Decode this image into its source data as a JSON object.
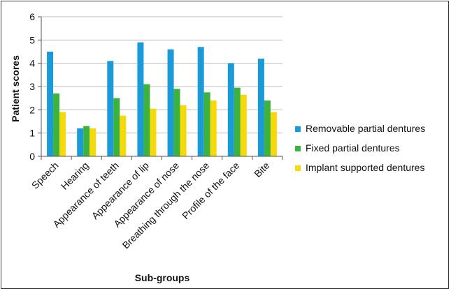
{
  "chart_data": {
    "type": "bar",
    "title": "",
    "xlabel": "Sub-groups",
    "ylabel": "Patient scores",
    "ylim": [
      0,
      6
    ],
    "yticks": [
      "0",
      "1",
      "2",
      "3",
      "4",
      "5",
      "6"
    ],
    "grid": true,
    "legend_position": "right",
    "categories": [
      "Speech",
      "Hearing",
      "Appearance of teeth",
      "Appearance of lip",
      "Appearance of nose",
      "Breathing through the nose",
      "Profile of the face",
      "Bite"
    ],
    "series": [
      {
        "name": "Removable partial dentures",
        "color": "#1a9bd7",
        "values": [
          4.5,
          1.2,
          4.1,
          4.9,
          4.6,
          4.7,
          4.0,
          4.2
        ]
      },
      {
        "name": "Fixed partial dentures",
        "color": "#3db23d",
        "values": [
          2.7,
          1.3,
          2.5,
          3.1,
          2.9,
          2.75,
          2.95,
          2.4
        ]
      },
      {
        "name": "Implant supported dentures",
        "color": "#f5d90a",
        "values": [
          1.9,
          1.2,
          1.75,
          2.05,
          2.2,
          2.4,
          2.65,
          1.9
        ]
      }
    ]
  }
}
